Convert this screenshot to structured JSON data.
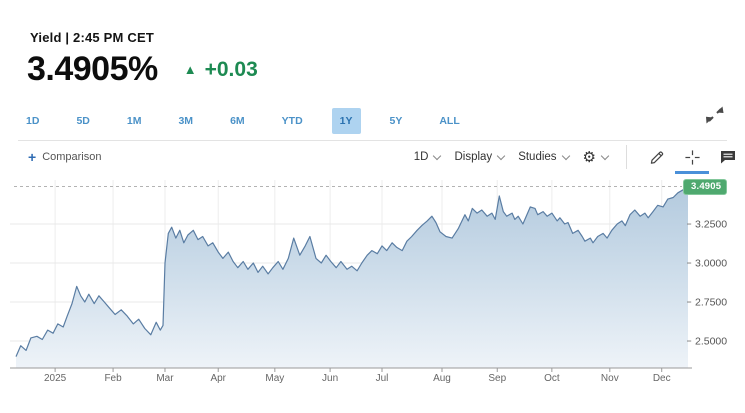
{
  "header": {
    "title": "Yield | 2:45 PM CET",
    "price": "3.4905%",
    "change": "+0.03",
    "direction": "up",
    "direction_icon": "▲"
  },
  "range_tabs": {
    "items": [
      "1D",
      "5D",
      "1M",
      "3M",
      "6M",
      "YTD",
      "1Y",
      "5Y",
      "ALL"
    ],
    "selected": "1Y"
  },
  "chart_toolbar": {
    "comparison_plus": "+",
    "comparison_label": "Comparison",
    "interval_label": "1D",
    "display_label": "Display",
    "studies_label": "Studies",
    "icons": [
      "gear-icon",
      "draw-icon",
      "crosshair-icon",
      "chat-icon"
    ],
    "active_tool": "crosshair"
  },
  "colors": {
    "accent_green": "#1d8a52",
    "badge_green": "#4fa96f",
    "last_dot": "#2f9288",
    "line": "#5a7da3",
    "fill_top": "#b3cade",
    "fill_bottom": "#eef3f8",
    "tab_blue": "#4b92c8",
    "tab_selected_bg": "#aed3f0",
    "active_tool_underline": "#4a90d9"
  },
  "chart_data": {
    "type": "area",
    "title": "Yield",
    "xlabel": "",
    "ylabel": "",
    "grid": true,
    "legend": "none",
    "ylim": [
      2.327,
      3.558
    ],
    "y_ticks": [
      {
        "label": "3.2500",
        "value": 3.25
      },
      {
        "label": "3.0000",
        "value": 3.0
      },
      {
        "label": "2.7500",
        "value": 2.75
      },
      {
        "label": "2.5000",
        "value": 2.5
      }
    ],
    "x_ticks": [
      {
        "label": "2025",
        "f": 0.061
      },
      {
        "label": "Feb",
        "f": 0.147
      },
      {
        "label": "Mar",
        "f": 0.224
      },
      {
        "label": "Apr",
        "f": 0.303
      },
      {
        "label": "May",
        "f": 0.387
      },
      {
        "label": "Jun",
        "f": 0.469
      },
      {
        "label": "Jul",
        "f": 0.546
      },
      {
        "label": "Aug",
        "f": 0.635
      },
      {
        "label": "Sep",
        "f": 0.717
      },
      {
        "label": "Oct",
        "f": 0.798
      },
      {
        "label": "Nov",
        "f": 0.884
      },
      {
        "label": "Dec",
        "f": 0.961
      }
    ],
    "last": {
      "label": "3.4905",
      "value": 3.4905
    },
    "series": [
      {
        "name": "yield",
        "points": [
          [
            0.003,
            2.4
          ],
          [
            0.01,
            2.47
          ],
          [
            0.018,
            2.44
          ],
          [
            0.025,
            2.52
          ],
          [
            0.034,
            2.53
          ],
          [
            0.042,
            2.51
          ],
          [
            0.05,
            2.57
          ],
          [
            0.058,
            2.55
          ],
          [
            0.065,
            2.61
          ],
          [
            0.073,
            2.59
          ],
          [
            0.079,
            2.66
          ],
          [
            0.086,
            2.74
          ],
          [
            0.093,
            2.85
          ],
          [
            0.099,
            2.79
          ],
          [
            0.105,
            2.75
          ],
          [
            0.111,
            2.8
          ],
          [
            0.119,
            2.74
          ],
          [
            0.126,
            2.79
          ],
          [
            0.134,
            2.75
          ],
          [
            0.142,
            2.71
          ],
          [
            0.15,
            2.67
          ],
          [
            0.159,
            2.7
          ],
          [
            0.168,
            2.66
          ],
          [
            0.177,
            2.61
          ],
          [
            0.185,
            2.64
          ],
          [
            0.194,
            2.58
          ],
          [
            0.203,
            2.54
          ],
          [
            0.211,
            2.62
          ],
          [
            0.217,
            2.57
          ],
          [
            0.221,
            2.6
          ],
          [
            0.224,
            3.0
          ],
          [
            0.229,
            3.19
          ],
          [
            0.234,
            3.23
          ],
          [
            0.24,
            3.16
          ],
          [
            0.246,
            3.21
          ],
          [
            0.252,
            3.13
          ],
          [
            0.258,
            3.18
          ],
          [
            0.266,
            3.21
          ],
          [
            0.273,
            3.15
          ],
          [
            0.28,
            3.17
          ],
          [
            0.288,
            3.11
          ],
          [
            0.295,
            3.13
          ],
          [
            0.303,
            3.07
          ],
          [
            0.31,
            3.03
          ],
          [
            0.318,
            3.07
          ],
          [
            0.325,
            3.01
          ],
          [
            0.332,
            2.97
          ],
          [
            0.34,
            3.01
          ],
          [
            0.347,
            2.96
          ],
          [
            0.355,
            3.0
          ],
          [
            0.362,
            2.94
          ],
          [
            0.369,
            2.98
          ],
          [
            0.377,
            2.93
          ],
          [
            0.384,
            2.97
          ],
          [
            0.392,
            3.01
          ],
          [
            0.399,
            2.96
          ],
          [
            0.407,
            3.03
          ],
          [
            0.415,
            3.16
          ],
          [
            0.424,
            3.05
          ],
          [
            0.432,
            3.11
          ],
          [
            0.439,
            3.17
          ],
          [
            0.448,
            3.03
          ],
          [
            0.456,
            3.0
          ],
          [
            0.463,
            3.05
          ],
          [
            0.47,
            3.01
          ],
          [
            0.478,
            2.97
          ],
          [
            0.485,
            3.01
          ],
          [
            0.494,
            2.96
          ],
          [
            0.501,
            2.98
          ],
          [
            0.509,
            2.95
          ],
          [
            0.516,
            3.0
          ],
          [
            0.524,
            3.05
          ],
          [
            0.531,
            3.08
          ],
          [
            0.539,
            3.06
          ],
          [
            0.546,
            3.11
          ],
          [
            0.553,
            3.08
          ],
          [
            0.561,
            3.13
          ],
          [
            0.568,
            3.1
          ],
          [
            0.576,
            3.08
          ],
          [
            0.583,
            3.14
          ],
          [
            0.59,
            3.17
          ],
          [
            0.598,
            3.21
          ],
          [
            0.605,
            3.24
          ],
          [
            0.613,
            3.27
          ],
          [
            0.62,
            3.3
          ],
          [
            0.626,
            3.26
          ],
          [
            0.632,
            3.2
          ],
          [
            0.641,
            3.17
          ],
          [
            0.65,
            3.16
          ],
          [
            0.659,
            3.22
          ],
          [
            0.669,
            3.31
          ],
          [
            0.674,
            3.27
          ],
          [
            0.68,
            3.35
          ],
          [
            0.687,
            3.32
          ],
          [
            0.694,
            3.34
          ],
          [
            0.702,
            3.3
          ],
          [
            0.709,
            3.32
          ],
          [
            0.714,
            3.28
          ],
          [
            0.72,
            3.43
          ],
          [
            0.726,
            3.33
          ],
          [
            0.731,
            3.3
          ],
          [
            0.739,
            3.32
          ],
          [
            0.743,
            3.28
          ],
          [
            0.748,
            3.3
          ],
          [
            0.755,
            3.25
          ],
          [
            0.766,
            3.36
          ],
          [
            0.773,
            3.35
          ],
          [
            0.777,
            3.31
          ],
          [
            0.785,
            3.33
          ],
          [
            0.791,
            3.3
          ],
          [
            0.798,
            3.32
          ],
          [
            0.806,
            3.27
          ],
          [
            0.81,
            3.29
          ],
          [
            0.817,
            3.25
          ],
          [
            0.822,
            3.26
          ],
          [
            0.829,
            3.19
          ],
          [
            0.837,
            3.21
          ],
          [
            0.843,
            3.17
          ],
          [
            0.847,
            3.14
          ],
          [
            0.855,
            3.16
          ],
          [
            0.859,
            3.13
          ],
          [
            0.866,
            3.17
          ],
          [
            0.874,
            3.19
          ],
          [
            0.88,
            3.16
          ],
          [
            0.887,
            3.21
          ],
          [
            0.895,
            3.25
          ],
          [
            0.902,
            3.27
          ],
          [
            0.907,
            3.24
          ],
          [
            0.914,
            3.31
          ],
          [
            0.921,
            3.34
          ],
          [
            0.929,
            3.3
          ],
          [
            0.936,
            3.32
          ],
          [
            0.941,
            3.29
          ],
          [
            0.948,
            3.33
          ],
          [
            0.955,
            3.37
          ],
          [
            0.963,
            3.36
          ],
          [
            0.97,
            3.41
          ],
          [
            0.978,
            3.42
          ],
          [
            0.985,
            3.45
          ],
          [
            0.993,
            3.47
          ],
          [
            1.0,
            3.4905
          ]
        ]
      }
    ]
  }
}
